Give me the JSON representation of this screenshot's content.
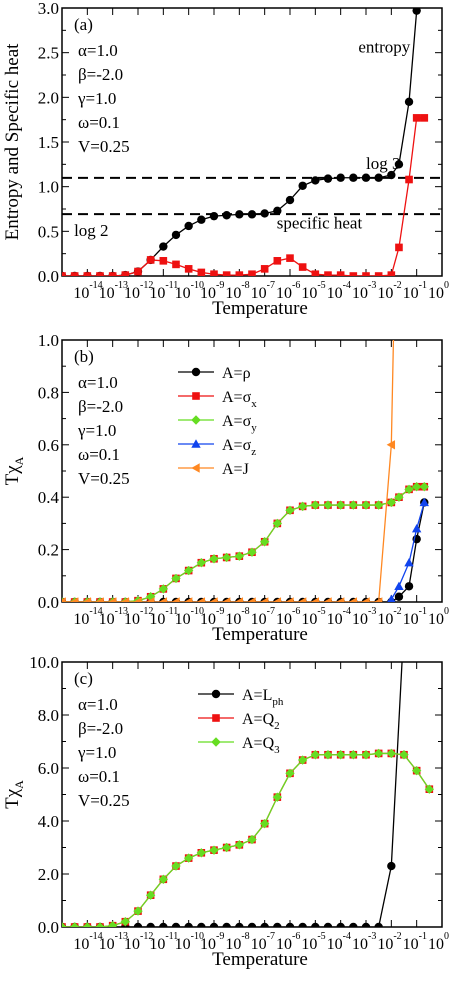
{
  "chart_data": [
    {
      "type": "line",
      "panel": "(a)",
      "ylabel": "Entropy and Specific heat",
      "xlabel": "Temperature",
      "xscale": "log",
      "xlim": [
        1e-15,
        1
      ],
      "ylim": [
        0,
        3
      ],
      "yticks": [
        "0.0",
        "0.5",
        "1.0",
        "1.5",
        "2.0",
        "2.5",
        "3.0"
      ],
      "ytick_values": [
        0,
        0.5,
        1.0,
        1.5,
        2.0,
        2.5,
        3.0
      ],
      "xtick_exponents": [
        "-14",
        "-13",
        "-12",
        "-11",
        "-10",
        "-9",
        "-8",
        "-7",
        "-6",
        "-5",
        "-4",
        "-3",
        "-2",
        "-1",
        "0"
      ],
      "xtick_base": "10",
      "params": [
        "α=1.0",
        "β=-2.0",
        "γ=1.0",
        "ω=0.1",
        "V=0.25"
      ],
      "hlines": [
        {
          "y": 1.0986,
          "label": "log 3",
          "label_x": 0.001,
          "label_y": 1.2
        },
        {
          "y": 0.6931,
          "label": "log 2",
          "label_x": 3e-15,
          "label_y": 0.45
        }
      ],
      "annotations": [
        {
          "text": "entropy",
          "x": 0.0005,
          "y": 2.5
        },
        {
          "text": "specific heat",
          "x": 3e-07,
          "y": 0.53
        }
      ],
      "legend": [],
      "series": [
        {
          "color": "#000000",
          "marker": "circle",
          "x": [
            1e-15,
            3.16e-15,
            1e-14,
            3.16e-14,
            1e-13,
            3.16e-13,
            1e-12,
            3.16e-12,
            1e-11,
            3.16e-11,
            1e-10,
            3.16e-10,
            1e-09,
            3.16e-09,
            1e-08,
            3.16e-08,
            1e-07,
            3.16e-07,
            1e-06,
            3.16e-06,
            1e-05,
            3.16e-05,
            0.0001,
            0.000316,
            0.001,
            0.00316,
            0.01,
            0.02,
            0.05,
            0.1
          ],
          "y": [
            0,
            0,
            0,
            0,
            0,
            0.01,
            0.05,
            0.18,
            0.33,
            0.46,
            0.56,
            0.63,
            0.67,
            0.68,
            0.69,
            0.69,
            0.7,
            0.73,
            0.85,
            1.01,
            1.07,
            1.09,
            1.1,
            1.1,
            1.1,
            1.1,
            1.13,
            1.25,
            1.95,
            2.97
          ]
        },
        {
          "color": "#ee1111",
          "marker": "square",
          "x": [
            1e-15,
            3.16e-15,
            1e-14,
            3.16e-14,
            1e-13,
            3.16e-13,
            1e-12,
            3.16e-12,
            1e-11,
            3.16e-11,
            1e-10,
            3.16e-10,
            1e-09,
            3.16e-09,
            1e-08,
            3.16e-08,
            1e-07,
            3.16e-07,
            1e-06,
            3.16e-06,
            1e-05,
            3.16e-05,
            0.0001,
            0.000316,
            0.001,
            0.00316,
            0.01,
            0.02,
            0.05,
            0.1,
            0.2
          ],
          "y": [
            0,
            0,
            0,
            0,
            0,
            0.01,
            0.05,
            0.18,
            0.17,
            0.13,
            0.08,
            0.04,
            0.02,
            0.01,
            0.01,
            0.02,
            0.08,
            0.17,
            0.2,
            0.1,
            0.02,
            0.01,
            0.01,
            0,
            0,
            0,
            0.01,
            0.32,
            1.08,
            1.77,
            1.77
          ]
        }
      ]
    },
    {
      "type": "line",
      "panel": "(b)",
      "ylabel": "Tχ",
      "ylabel_sub": "A",
      "xlabel": "Temperature",
      "xscale": "log",
      "xlim": [
        1e-15,
        1
      ],
      "ylim": [
        0,
        1
      ],
      "yticks": [
        "0.0",
        "0.2",
        "0.4",
        "0.6",
        "0.8",
        "1.0"
      ],
      "ytick_values": [
        0,
        0.2,
        0.4,
        0.6,
        0.8,
        1.0
      ],
      "xtick_exponents": [
        "-14",
        "-13",
        "-12",
        "-11",
        "-10",
        "-9",
        "-8",
        "-7",
        "-6",
        "-5",
        "-4",
        "-3",
        "-2",
        "-1",
        "0"
      ],
      "xtick_base": "10",
      "params": [
        "α=1.0",
        "β=-2.0",
        "γ=1.0",
        "ω=0.1",
        "V=0.25"
      ],
      "hlines": [],
      "annotations": [],
      "legend": [
        {
          "base": "A=ρ",
          "sub": "",
          "color": "#000000",
          "marker": "circle"
        },
        {
          "base": "A=σ",
          "sub": "x",
          "color": "#ee1111",
          "marker": "square"
        },
        {
          "base": "A=σ",
          "sub": "y",
          "color": "#66dd22",
          "marker": "diamond"
        },
        {
          "base": "A=σ",
          "sub": "z",
          "color": "#1144ee",
          "marker": "triangle-up"
        },
        {
          "base": "A=J",
          "sub": "",
          "color": "#ff8822",
          "marker": "triangle-left"
        }
      ],
      "series": [
        {
          "color": "#000000",
          "marker": "circle",
          "x": [
            1e-15,
            3.16e-15,
            1e-14,
            3.16e-14,
            1e-13,
            3.16e-13,
            1e-12,
            3.16e-12,
            1e-11,
            3.16e-11,
            1e-10,
            3.16e-10,
            1e-09,
            3.16e-09,
            1e-08,
            3.16e-08,
            1e-07,
            3.16e-07,
            1e-06,
            3.16e-06,
            1e-05,
            3.16e-05,
            0.0001,
            0.000316,
            0.001,
            0.00316,
            0.01,
            0.02,
            0.05,
            0.1,
            0.2
          ],
          "y": [
            0,
            0,
            0,
            0,
            0,
            0,
            0,
            0,
            0,
            0,
            0,
            0,
            0,
            0,
            0,
            0,
            0,
            0,
            0,
            0,
            0,
            0,
            0,
            0,
            0,
            0,
            0,
            0.02,
            0.06,
            0.24,
            0.38
          ]
        },
        {
          "color": "#ee1111",
          "marker": "square",
          "x": [
            1e-15,
            3.16e-15,
            1e-14,
            3.16e-14,
            1e-13,
            3.16e-13,
            1e-12,
            3.16e-12,
            1e-11,
            3.16e-11,
            1e-10,
            3.16e-10,
            1e-09,
            3.16e-09,
            1e-08,
            3.16e-08,
            1e-07,
            3.16e-07,
            1e-06,
            3.16e-06,
            1e-05,
            3.16e-05,
            0.0001,
            0.000316,
            0.001,
            0.00316,
            0.01,
            0.02,
            0.05,
            0.1,
            0.2
          ],
          "y": [
            0,
            0,
            0,
            0,
            0,
            0,
            0.005,
            0.02,
            0.05,
            0.09,
            0.12,
            0.15,
            0.165,
            0.17,
            0.175,
            0.19,
            0.23,
            0.3,
            0.35,
            0.365,
            0.37,
            0.37,
            0.37,
            0.37,
            0.37,
            0.37,
            0.38,
            0.4,
            0.43,
            0.44,
            0.44
          ]
        },
        {
          "color": "#66dd22",
          "marker": "diamond",
          "x": [
            1e-15,
            3.16e-15,
            1e-14,
            3.16e-14,
            1e-13,
            3.16e-13,
            1e-12,
            3.16e-12,
            1e-11,
            3.16e-11,
            1e-10,
            3.16e-10,
            1e-09,
            3.16e-09,
            1e-08,
            3.16e-08,
            1e-07,
            3.16e-07,
            1e-06,
            3.16e-06,
            1e-05,
            3.16e-05,
            0.0001,
            0.000316,
            0.001,
            0.00316,
            0.01,
            0.02,
            0.05,
            0.1,
            0.2
          ],
          "y": [
            0,
            0,
            0,
            0,
            0,
            0,
            0.005,
            0.02,
            0.05,
            0.09,
            0.12,
            0.15,
            0.165,
            0.17,
            0.175,
            0.19,
            0.23,
            0.3,
            0.35,
            0.365,
            0.37,
            0.37,
            0.37,
            0.37,
            0.37,
            0.37,
            0.38,
            0.4,
            0.43,
            0.44,
            0.44
          ]
        },
        {
          "color": "#1144ee",
          "marker": "triangle-up",
          "x": [
            0.01,
            0.02,
            0.05,
            0.1,
            0.2
          ],
          "y": [
            0.01,
            0.06,
            0.15,
            0.28,
            0.38
          ]
        },
        {
          "color": "#ff8822",
          "marker": "triangle-left",
          "x": [
            1e-15,
            3.16e-15,
            1e-14,
            3.16e-14,
            1e-13,
            3.16e-13,
            1e-12,
            3.16e-12,
            1e-11,
            3.16e-11,
            1e-10,
            3.16e-10,
            1e-09,
            3.16e-09,
            1e-08,
            3.16e-08,
            1e-07,
            3.16e-07,
            1e-06,
            3.16e-06,
            1e-05,
            3.16e-05,
            0.0001,
            0.000316,
            0.001,
            0.00316,
            0.01,
            0.013
          ],
          "y": [
            0,
            0,
            0,
            0,
            0,
            0,
            0,
            0,
            0,
            0,
            0,
            0,
            0,
            0,
            0,
            0,
            0,
            0,
            0,
            0,
            0,
            0,
            0,
            0,
            0,
            0,
            0.6,
            1.15
          ]
        }
      ]
    },
    {
      "type": "line",
      "panel": "(c)",
      "ylabel": "Tχ",
      "ylabel_sub": "A",
      "xlabel": "Temperature",
      "xscale": "log",
      "xlim": [
        1e-15,
        1
      ],
      "ylim": [
        0,
        10
      ],
      "yticks": [
        "0.0",
        "2.0",
        "4.0",
        "6.0",
        "8.0",
        "10.0"
      ],
      "ytick_values": [
        0,
        2,
        4,
        6,
        8,
        10
      ],
      "xtick_exponents": [
        "-14",
        "-13",
        "-12",
        "-11",
        "-10",
        "-9",
        "-8",
        "-7",
        "-6",
        "-5",
        "-4",
        "-3",
        "-2",
        "-1",
        "0"
      ],
      "xtick_base": "10",
      "params": [
        "α=1.0",
        "β=-2.0",
        "γ=1.0",
        "ω=0.1",
        "V=0.25"
      ],
      "hlines": [],
      "annotations": [],
      "legend": [
        {
          "base": "A=L",
          "sub": "ph",
          "color": "#000000",
          "marker": "circle"
        },
        {
          "base": "A=Q",
          "sub": "2",
          "color": "#ee1111",
          "marker": "square"
        },
        {
          "base": "A=Q",
          "sub": "3",
          "color": "#66dd22",
          "marker": "diamond"
        }
      ],
      "series": [
        {
          "color": "#000000",
          "marker": "circle",
          "x": [
            1e-15,
            3.16e-15,
            1e-14,
            3.16e-14,
            1e-13,
            3.16e-13,
            1e-12,
            3.16e-12,
            1e-11,
            3.16e-11,
            1e-10,
            3.16e-10,
            1e-09,
            3.16e-09,
            1e-08,
            3.16e-08,
            1e-07,
            3.16e-07,
            1e-06,
            3.16e-06,
            1e-05,
            3.16e-05,
            0.0001,
            0.000316,
            0.001,
            0.00316,
            0.01,
            0.03
          ],
          "y": [
            0,
            0,
            0,
            0,
            0,
            0,
            0,
            0,
            0,
            0,
            0,
            0,
            0,
            0,
            0,
            0,
            0,
            0,
            0,
            0,
            0,
            0,
            0,
            0,
            0,
            0,
            2.3,
            11
          ]
        },
        {
          "color": "#ee1111",
          "marker": "square",
          "x": [
            1e-15,
            3.16e-15,
            1e-14,
            3.16e-14,
            1e-13,
            3.16e-13,
            1e-12,
            3.16e-12,
            1e-11,
            3.16e-11,
            1e-10,
            3.16e-10,
            1e-09,
            3.16e-09,
            1e-08,
            3.16e-08,
            1e-07,
            3.16e-07,
            1e-06,
            3.16e-06,
            1e-05,
            3.16e-05,
            0.0001,
            0.000316,
            0.001,
            0.00316,
            0.01,
            0.0316,
            0.1,
            0.316
          ],
          "y": [
            0,
            0,
            0,
            0,
            0.05,
            0.2,
            0.6,
            1.2,
            1.8,
            2.3,
            2.6,
            2.8,
            2.9,
            3.0,
            3.1,
            3.3,
            3.9,
            4.9,
            5.8,
            6.3,
            6.5,
            6.5,
            6.5,
            6.5,
            6.5,
            6.55,
            6.55,
            6.5,
            5.9,
            5.2
          ]
        },
        {
          "color": "#66dd22",
          "marker": "diamond",
          "x": [
            1e-15,
            3.16e-15,
            1e-14,
            3.16e-14,
            1e-13,
            3.16e-13,
            1e-12,
            3.16e-12,
            1e-11,
            3.16e-11,
            1e-10,
            3.16e-10,
            1e-09,
            3.16e-09,
            1e-08,
            3.16e-08,
            1e-07,
            3.16e-07,
            1e-06,
            3.16e-06,
            1e-05,
            3.16e-05,
            0.0001,
            0.000316,
            0.001,
            0.00316,
            0.01,
            0.0316,
            0.1,
            0.316
          ],
          "y": [
            0,
            0,
            0,
            0,
            0.05,
            0.2,
            0.6,
            1.2,
            1.8,
            2.3,
            2.6,
            2.8,
            2.9,
            3.0,
            3.1,
            3.3,
            3.9,
            4.9,
            5.8,
            6.3,
            6.5,
            6.5,
            6.5,
            6.5,
            6.5,
            6.55,
            6.55,
            6.5,
            5.9,
            5.2
          ]
        }
      ]
    }
  ]
}
